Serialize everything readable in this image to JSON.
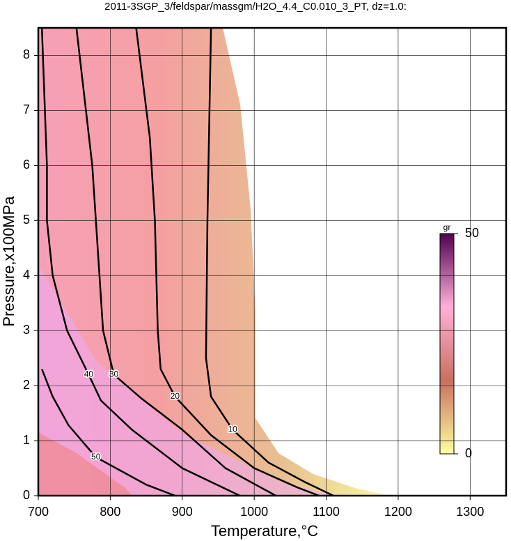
{
  "chart_data": {
    "type": "contour",
    "title": "2011-3SGP_3/feldspar/massgm/H2O_4.4_C0.010_3_PT, dz=1.0:",
    "x_label": "Temperature,°C",
    "y_label": "Pressure,x100MPa",
    "xlim": [
      700,
      1350
    ],
    "xticks": [
      700,
      800,
      900,
      1000,
      1100,
      1200,
      1300
    ],
    "ylim": [
      0,
      8.5
    ],
    "yticks": [
      0,
      1,
      2,
      3,
      4,
      5,
      6,
      7,
      8
    ],
    "grid": true,
    "line_color": "#000000",
    "contours": [
      {
        "level": 10,
        "x": [
          940,
          935,
          933,
          940,
          970,
          1020,
          1070,
          1110
        ],
        "y": [
          8.5,
          5,
          2.5,
          1.8,
          1.2,
          0.6,
          0.25,
          0
        ]
      },
      {
        "level": 20,
        "x": [
          836,
          855,
          862,
          866,
          870,
          890,
          940,
          1000,
          1060,
          1090
        ],
        "y": [
          8.5,
          6.5,
          5,
          3,
          2.3,
          1.8,
          1.1,
          0.5,
          0.15,
          0
        ]
      },
      {
        "level": 30,
        "x": [
          753,
          775,
          780,
          790,
          805,
          843,
          900,
          960,
          1030
        ],
        "y": [
          8.5,
          6,
          5,
          3,
          2.2,
          1.77,
          1.2,
          0.5,
          0
        ]
      },
      {
        "level": 40,
        "x": [
          705,
          712,
          712,
          720,
          740,
          770,
          787,
          830,
          900,
          980
        ],
        "y": [
          8.5,
          6,
          5,
          4,
          3,
          2.2,
          1.73,
          1.2,
          0.5,
          0
        ]
      },
      {
        "level": 50,
        "x": [
          705,
          720,
          742,
          780,
          850,
          890
        ],
        "y": [
          2.3,
          1.8,
          1.28,
          0.7,
          0.2,
          0
        ]
      }
    ],
    "colorbar": {
      "label": "gr",
      "lim": [
        0,
        50
      ],
      "ticks": [
        0,
        50
      ],
      "colors": [
        "#ffffa0",
        "#c87060",
        "#ffb0d8",
        "#500050"
      ]
    }
  }
}
